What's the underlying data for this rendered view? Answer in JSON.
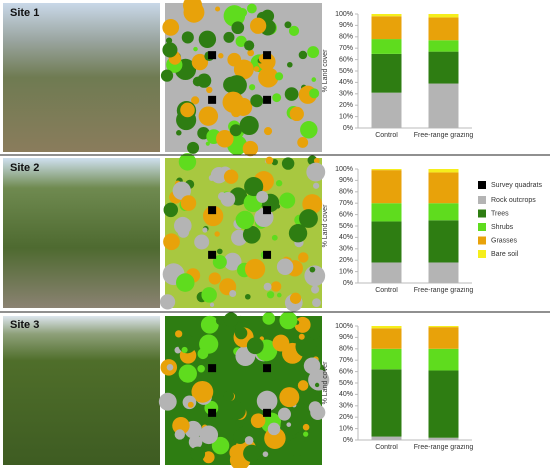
{
  "legend": {
    "marker": "Survey quadrats",
    "items": [
      {
        "name": "Rock outcrops",
        "color": "#b4b4b4"
      },
      {
        "name": "Trees",
        "color": "#2e7d12"
      },
      {
        "name": "Shrubs",
        "color": "#5fdc1e"
      },
      {
        "name": "Grasses",
        "color": "#e8a20a"
      },
      {
        "name": "Bare soil",
        "color": "#f5ee1c"
      }
    ]
  },
  "chart_data": [
    {
      "type": "bar",
      "stacked": true,
      "site": "Site 1",
      "ylabel": "% Land cover",
      "categories": [
        "Control",
        "Free-range grazing"
      ],
      "series": [
        {
          "values": [
            31,
            39
          ]
        },
        {
          "values": [
            34,
            28
          ]
        },
        {
          "values": [
            13,
            10
          ]
        },
        {
          "values": [
            20,
            20
          ]
        },
        {
          "values": [
            2,
            3
          ]
        }
      ],
      "ylim": [
        0,
        100
      ],
      "yticks": [
        {
          "value": 0,
          "label": "0%"
        },
        {
          "value": 10,
          "label": "10%"
        },
        {
          "value": 20,
          "label": "20%"
        },
        {
          "value": 30,
          "label": "30%"
        },
        {
          "value": 40,
          "label": "40%"
        },
        {
          "value": 50,
          "label": "50%"
        },
        {
          "value": 60,
          "label": "60%"
        },
        {
          "value": 70,
          "label": "70%"
        },
        {
          "value": 80,
          "label": "80%"
        },
        {
          "value": 90,
          "label": "90%"
        },
        {
          "value": 100,
          "label": "100%"
        }
      ]
    },
    {
      "type": "bar",
      "stacked": true,
      "site": "Site 2",
      "ylabel": "% Land cover",
      "categories": [
        "Control",
        "Free-range grazing"
      ],
      "series": [
        {
          "values": [
            18,
            18
          ]
        },
        {
          "values": [
            36,
            37
          ]
        },
        {
          "values": [
            16,
            15
          ]
        },
        {
          "values": [
            29,
            27
          ]
        },
        {
          "values": [
            1,
            3
          ]
        }
      ],
      "ylim": [
        0,
        100
      ],
      "yticks": [
        {
          "value": 0,
          "label": "0%"
        },
        {
          "value": 10,
          "label": "10%"
        },
        {
          "value": 20,
          "label": "20%"
        },
        {
          "value": 30,
          "label": "30%"
        },
        {
          "value": 40,
          "label": "40%"
        },
        {
          "value": 50,
          "label": "50%"
        },
        {
          "value": 60,
          "label": "60%"
        },
        {
          "value": 70,
          "label": "70%"
        },
        {
          "value": 80,
          "label": "80%"
        },
        {
          "value": 90,
          "label": "90%"
        },
        {
          "value": 100,
          "label": "100%"
        }
      ]
    },
    {
      "type": "bar",
      "stacked": true,
      "site": "Site 3",
      "ylabel": "% Land cover",
      "categories": [
        "Control",
        "Free-range grazing"
      ],
      "series": [
        {
          "values": [
            3,
            2
          ]
        },
        {
          "values": [
            59,
            59
          ]
        },
        {
          "values": [
            18,
            19
          ]
        },
        {
          "values": [
            18,
            19
          ]
        },
        {
          "values": [
            2,
            1
          ]
        }
      ],
      "ylim": [
        0,
        100
      ],
      "yticks": [
        {
          "value": 0,
          "label": "0%"
        },
        {
          "value": 10,
          "label": "10%"
        },
        {
          "value": 20,
          "label": "20%"
        },
        {
          "value": 30,
          "label": "30%"
        },
        {
          "value": 40,
          "label": "40%"
        },
        {
          "value": 50,
          "label": "50%"
        },
        {
          "value": 60,
          "label": "60%"
        },
        {
          "value": 70,
          "label": "70%"
        },
        {
          "value": 80,
          "label": "80%"
        },
        {
          "value": 90,
          "label": "90%"
        },
        {
          "value": 100,
          "label": "100%"
        }
      ]
    }
  ]
}
